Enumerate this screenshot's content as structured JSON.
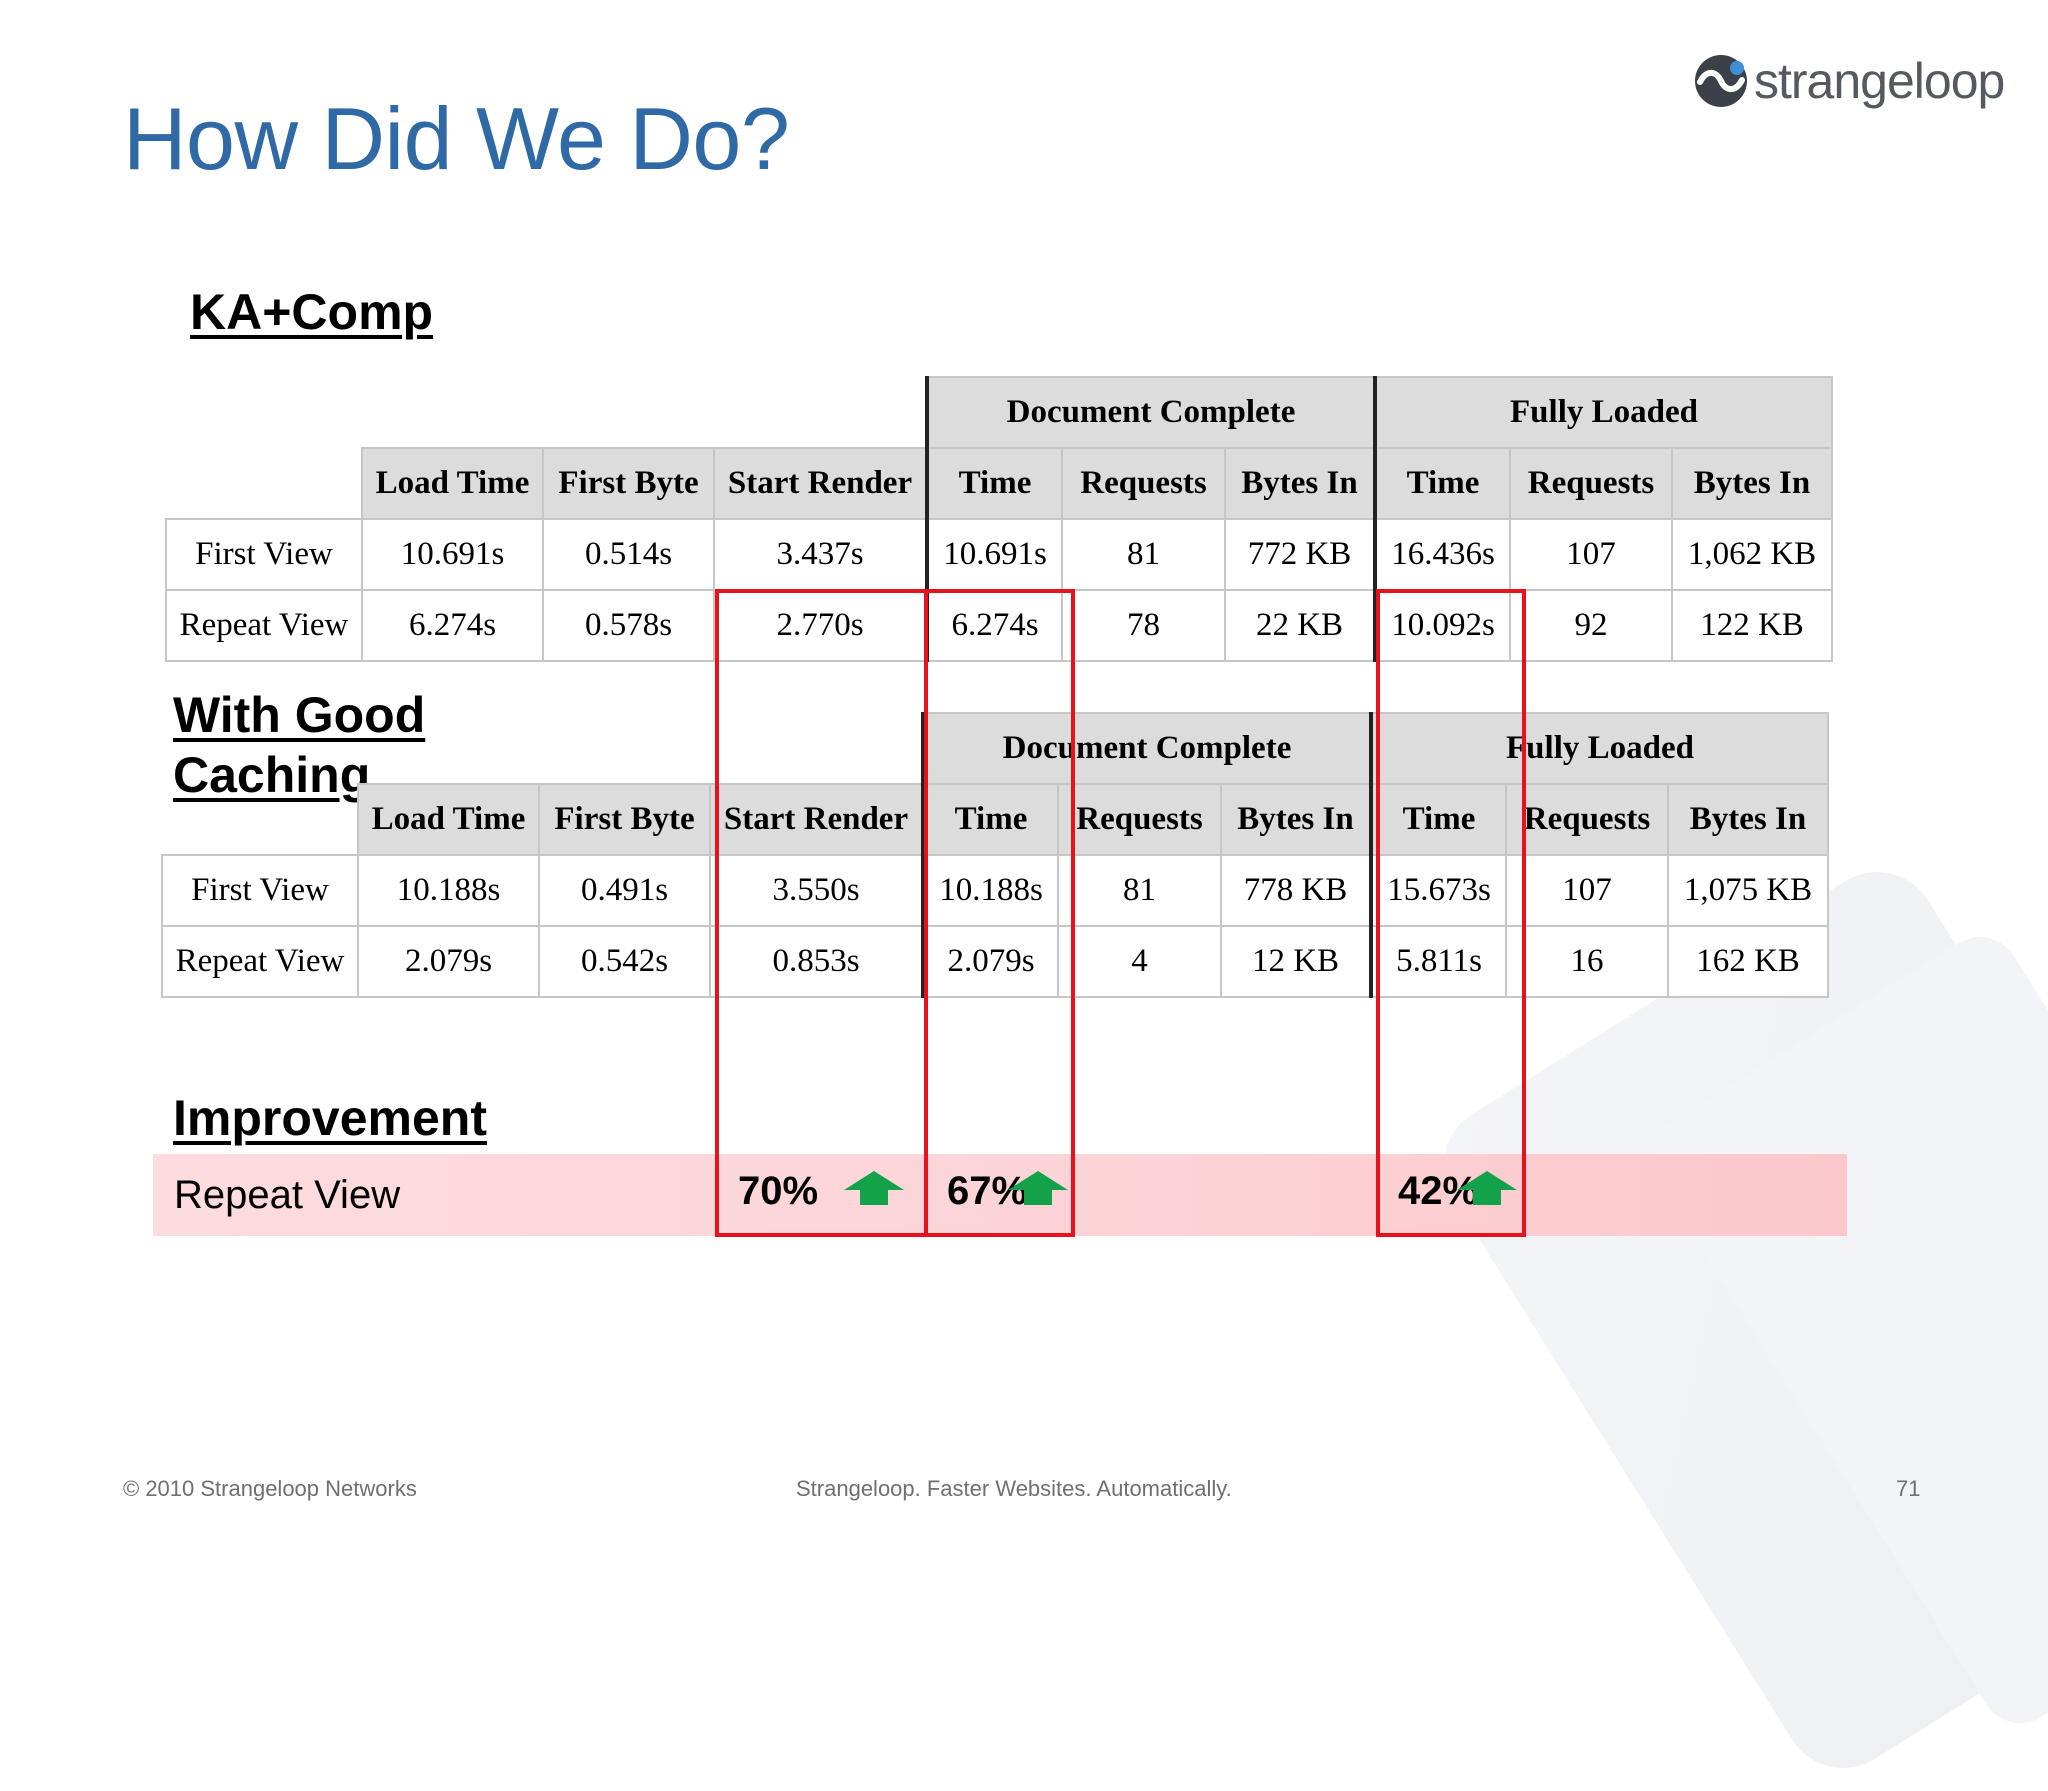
{
  "title": "How Did We Do?",
  "logo": {
    "text": "strangeloop",
    "icon": "strangeloop-logo-icon"
  },
  "sections": {
    "ka_comp": "KA+Comp",
    "good_caching": [
      "With Good",
      "Caching"
    ],
    "improvement": "Improvement"
  },
  "table_headers": {
    "groups": [
      "Document Complete",
      "Fully Loaded"
    ],
    "columns": [
      "Load Time",
      "First Byte",
      "Start Render",
      "Time",
      "Requests",
      "Bytes In",
      "Time",
      "Requests",
      "Bytes In"
    ]
  },
  "ka_comp_table": {
    "rows": [
      {
        "label": "First View",
        "cells": [
          "10.691s",
          "0.514s",
          "3.437s",
          "10.691s",
          "81",
          "772 KB",
          "16.436s",
          "107",
          "1,062 KB"
        ]
      },
      {
        "label": "Repeat View",
        "cells": [
          "6.274s",
          "0.578s",
          "2.770s",
          "6.274s",
          "78",
          "22 KB",
          "10.092s",
          "92",
          "122 KB"
        ]
      }
    ]
  },
  "caching_table": {
    "rows": [
      {
        "label": "First View",
        "cells": [
          "10.188s",
          "0.491s",
          "3.550s",
          "10.188s",
          "81",
          "778 KB",
          "15.673s",
          "107",
          "1,075 KB"
        ]
      },
      {
        "label": "Repeat View",
        "cells": [
          "2.079s",
          "0.542s",
          "0.853s",
          "2.079s",
          "4",
          "12 KB",
          "5.811s",
          "16",
          "162 KB"
        ]
      }
    ]
  },
  "improvement": {
    "label": "Repeat View",
    "values": [
      "70%",
      "67%",
      "42%"
    ],
    "icon": "green-up-arrow-icon",
    "arrow_color": "#13a14a"
  },
  "colors": {
    "title": "#2f6aa6",
    "highlight": "#e8121c",
    "band": "#fcd3d6"
  },
  "footer": {
    "left": "© 2010 Strangeloop Networks",
    "center": "Strangeloop. Faster Websites. Automatically.",
    "page": "71"
  }
}
